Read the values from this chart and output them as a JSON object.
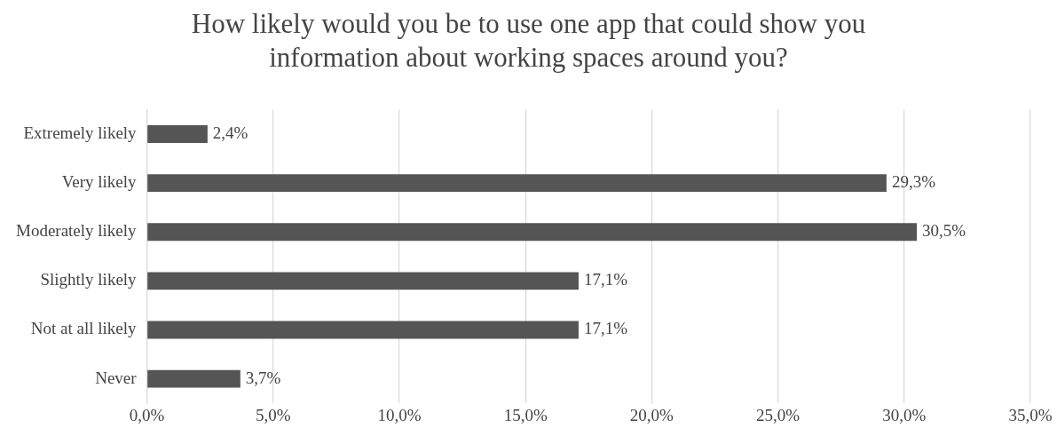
{
  "chart_data": {
    "type": "bar",
    "orientation": "horizontal",
    "title": "How likely would you be to use one app that could show you information about working spaces around you?",
    "categories": [
      "Extremely likely",
      "Very likely",
      "Moderately likely",
      "Slightly likely",
      "Not at all likely",
      "Never"
    ],
    "values": [
      2.4,
      29.3,
      30.5,
      17.1,
      17.1,
      3.7
    ],
    "value_labels": [
      "2,4%",
      "29,3%",
      "30,5%",
      "17,1%",
      "17,1%",
      "3,7%"
    ],
    "color": "#555555",
    "xlim": [
      0,
      35
    ],
    "xticks": [
      {
        "value": 0,
        "label": "0,0%"
      },
      {
        "value": 5,
        "label": "5,0%"
      },
      {
        "value": 10,
        "label": "10,0%"
      },
      {
        "value": 15,
        "label": "15,0%"
      },
      {
        "value": 20,
        "label": "20,0%"
      },
      {
        "value": 25,
        "label": "25,0%"
      },
      {
        "value": 30,
        "label": "30,0%"
      },
      {
        "value": 35,
        "label": "35,0%"
      }
    ],
    "grid": "x",
    "legend": false
  }
}
